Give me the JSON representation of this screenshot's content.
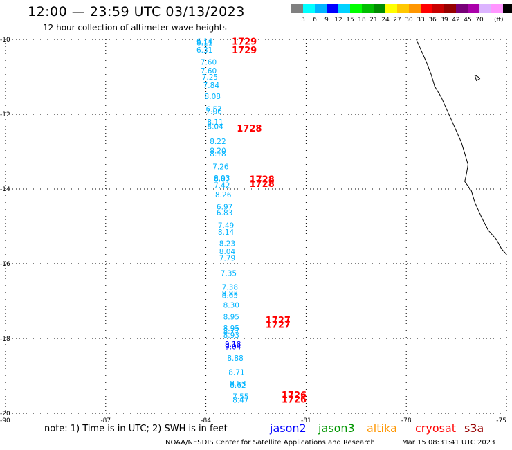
{
  "header": {
    "title": "12:00 — 23:59 UTC 03/13/2023",
    "subtitle": "12 hour collection of altimeter wave heights"
  },
  "colorbar": {
    "colors": [
      "#808080",
      "#00ffff",
      "#00b4ff",
      "#0000ff",
      "#00d2ff",
      "#00ff00",
      "#00be00",
      "#008c00",
      "#ffff00",
      "#ffc800",
      "#ff9600",
      "#ff0000",
      "#c80000",
      "#960000",
      "#780078",
      "#aa00aa",
      "#dcb4ff",
      "#ff96ff",
      "#000000"
    ],
    "labels": [
      "3",
      "6",
      "9",
      "12",
      "15",
      "18",
      "21",
      "24",
      "27",
      "30",
      "33",
      "36",
      "39",
      "42",
      "45",
      "70"
    ],
    "unit": "(ft)"
  },
  "axes": {
    "lon_min": -90,
    "lon_max": -75,
    "lat_min": -20,
    "lat_max": -10,
    "x_ticks": [
      "-90",
      "-87",
      "-84",
      "-81",
      "-78",
      "-75"
    ],
    "x_tick_values": [
      -90,
      -87,
      -84,
      -81,
      -78,
      -75
    ],
    "y_ticks": [
      "-10",
      "-12",
      "-14",
      "-16",
      "-18",
      "-20"
    ],
    "y_tick_values": [
      -10,
      -12,
      -14,
      -16,
      -18,
      -20
    ],
    "grid": "dotted",
    "grid_color": "#000000"
  },
  "map": {
    "coastline_color": "#000000",
    "coastline": [
      [
        -77.7,
        -10.0
      ],
      [
        -77.55,
        -10.3
      ],
      [
        -77.4,
        -10.6
      ],
      [
        -77.25,
        -10.95
      ],
      [
        -77.15,
        -11.25
      ],
      [
        -76.95,
        -11.55
      ],
      [
        -76.8,
        -11.85
      ],
      [
        -76.65,
        -12.15
      ],
      [
        -76.5,
        -12.45
      ],
      [
        -76.35,
        -12.75
      ],
      [
        -76.25,
        -13.05
      ],
      [
        -76.15,
        -13.35
      ],
      [
        -76.2,
        -13.6
      ],
      [
        -76.25,
        -13.8
      ],
      [
        -76.05,
        -14.05
      ],
      [
        -75.95,
        -14.35
      ],
      [
        -75.75,
        -14.75
      ],
      [
        -75.55,
        -15.1
      ],
      [
        -75.3,
        -15.35
      ],
      [
        -75.15,
        -15.6
      ],
      [
        -75.0,
        -15.75
      ]
    ],
    "island": [
      [
        -75.95,
        -10.95
      ],
      [
        -75.85,
        -11.0
      ],
      [
        -75.8,
        -11.05
      ],
      [
        -75.9,
        -11.1
      ],
      [
        -75.95,
        -10.95
      ]
    ]
  },
  "chart_data": {
    "type": "scatter",
    "title": "12 hour collection of altimeter wave heights",
    "xlabel": "Longitude",
    "ylabel": "Latitude",
    "xlim": [
      -90,
      -75
    ],
    "ylim": [
      -20,
      -10
    ],
    "series": [
      {
        "name": "jason2",
        "color": "#0000ff",
        "points": [
          {
            "lon": -83.19,
            "lat": -18.15,
            "swh": "9.18"
          },
          {
            "lon": -83.19,
            "lat": -18.21,
            "swh": "9.04"
          }
        ]
      },
      {
        "name": "cryosat",
        "color": "#ff0000",
        "passes": [
          {
            "label": "1729",
            "lon": -82.85,
            "lat": -10.05
          },
          {
            "label": "1729",
            "lon": -82.85,
            "lat": -10.28
          },
          {
            "label": "1728",
            "lon": -82.7,
            "lat": -12.37
          },
          {
            "label": "1728",
            "lon": -82.32,
            "lat": -13.73
          },
          {
            "label": "1728",
            "lon": -82.32,
            "lat": -13.85
          },
          {
            "label": "1727",
            "lon": -81.84,
            "lat": -17.5
          },
          {
            "label": "1727",
            "lon": -81.84,
            "lat": -17.62
          },
          {
            "label": "1726",
            "lon": -81.36,
            "lat": -19.5
          },
          {
            "label": "1726",
            "lon": -81.36,
            "lat": -19.62
          }
        ]
      },
      {
        "name": "s3a",
        "color": "#00b4ff",
        "points": [
          {
            "lon": -84.04,
            "lat": -10.05,
            "swh": "6.14"
          },
          {
            "lon": -84.04,
            "lat": -10.08,
            "swh": "8.11"
          },
          {
            "lon": -84.04,
            "lat": -10.28,
            "swh": "6.31"
          },
          {
            "lon": -83.92,
            "lat": -10.6,
            "swh": "7.60"
          },
          {
            "lon": -83.92,
            "lat": -10.83,
            "swh": "7.60"
          },
          {
            "lon": -83.88,
            "lat": -11.0,
            "swh": "7.25"
          },
          {
            "lon": -83.84,
            "lat": -11.22,
            "swh": "7.84"
          },
          {
            "lon": -83.8,
            "lat": -11.52,
            "swh": "8.08"
          },
          {
            "lon": -83.76,
            "lat": -11.86,
            "swh": "6.57"
          },
          {
            "lon": -83.76,
            "lat": -11.92,
            "swh": "7.06"
          },
          {
            "lon": -83.72,
            "lat": -12.2,
            "swh": "8.11"
          },
          {
            "lon": -83.72,
            "lat": -12.32,
            "swh": "8.04"
          },
          {
            "lon": -83.64,
            "lat": -12.72,
            "swh": "8.22"
          },
          {
            "lon": -83.64,
            "lat": -12.97,
            "swh": "8.20"
          },
          {
            "lon": -83.64,
            "lat": -13.06,
            "swh": "8.18"
          },
          {
            "lon": -83.56,
            "lat": -13.4,
            "swh": "7.26"
          },
          {
            "lon": -83.52,
            "lat": -13.7,
            "swh": "8.93"
          },
          {
            "lon": -83.52,
            "lat": -13.73,
            "swh": "8.07"
          },
          {
            "lon": -83.52,
            "lat": -13.9,
            "swh": "7.42"
          },
          {
            "lon": -83.48,
            "lat": -14.15,
            "swh": "8.26"
          },
          {
            "lon": -83.44,
            "lat": -14.47,
            "swh": "6.97"
          },
          {
            "lon": -83.44,
            "lat": -14.63,
            "swh": "6.83"
          },
          {
            "lon": -83.4,
            "lat": -14.97,
            "swh": "7.49"
          },
          {
            "lon": -83.4,
            "lat": -15.15,
            "swh": "8.14"
          },
          {
            "lon": -83.36,
            "lat": -15.45,
            "swh": "8.23"
          },
          {
            "lon": -83.36,
            "lat": -15.67,
            "swh": "8.04"
          },
          {
            "lon": -83.36,
            "lat": -15.84,
            "swh": "7.79"
          },
          {
            "lon": -83.32,
            "lat": -16.25,
            "swh": "7.35"
          },
          {
            "lon": -83.28,
            "lat": -16.62,
            "swh": "7.38"
          },
          {
            "lon": -83.28,
            "lat": -16.8,
            "swh": "8.83"
          },
          {
            "lon": -83.28,
            "lat": -16.84,
            "swh": "8.65"
          },
          {
            "lon": -83.24,
            "lat": -17.1,
            "swh": "8.30"
          },
          {
            "lon": -83.24,
            "lat": -17.42,
            "swh": "8.95"
          },
          {
            "lon": -83.24,
            "lat": -17.72,
            "swh": "8.95"
          },
          {
            "lon": -83.24,
            "lat": -17.8,
            "swh": "8.77"
          },
          {
            "lon": -83.24,
            "lat": -17.91,
            "swh": "8.93"
          },
          {
            "lon": -83.12,
            "lat": -18.52,
            "swh": "8.88"
          },
          {
            "lon": -83.08,
            "lat": -18.9,
            "swh": "8.71"
          },
          {
            "lon": -83.04,
            "lat": -19.2,
            "swh": "8.53"
          },
          {
            "lon": -83.04,
            "lat": -19.24,
            "swh": "8.62"
          },
          {
            "lon": -82.96,
            "lat": -19.55,
            "swh": "7.55"
          },
          {
            "lon": -82.96,
            "lat": -19.64,
            "swh": "8.47"
          }
        ]
      }
    ]
  },
  "note": "note: 1) Time is in UTC; 2) SWH is in feet",
  "legend": [
    {
      "label": "jason2",
      "color": "#0000ff"
    },
    {
      "label": "jason3",
      "color": "#009600"
    },
    {
      "label": "altika",
      "color": "#ff9600"
    },
    {
      "label": "cryosat",
      "color": "#ff0000"
    },
    {
      "label": "s3a",
      "color": "#960000"
    }
  ],
  "footer": {
    "credit": "NOAA/NESDIS Center for Satellite Applications and Research",
    "timestamp": "Mar 15 08:31:41 UTC 2023"
  }
}
